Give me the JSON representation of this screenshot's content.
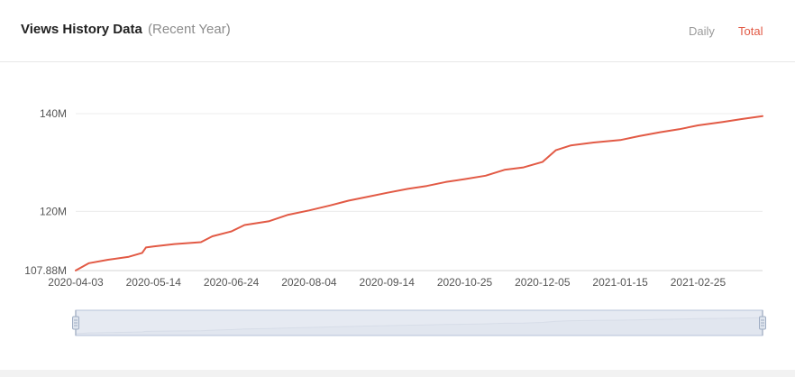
{
  "header": {
    "title": "Views History Data",
    "subtitle": "(Recent Year)",
    "tabs": [
      {
        "label": "Daily",
        "active": false
      },
      {
        "label": "Total",
        "active": true
      }
    ]
  },
  "colors": {
    "line": "#e25a45",
    "active_tab": "#e25a45",
    "inactive_tab": "#9a9a9a",
    "slider_fill": "#dde3ee",
    "slider_border": "#b7c3d8"
  },
  "chart_data": {
    "type": "line",
    "title": "",
    "xlabel": "",
    "ylabel": "",
    "ylim": [
      107.88,
      140
    ],
    "y_ticks": [
      {
        "value": 107.88,
        "label": "107.88M"
      },
      {
        "value": 120,
        "label": "120M"
      },
      {
        "value": 140,
        "label": "140M"
      }
    ],
    "x_ticks": [
      "2020-04-03",
      "2020-05-14",
      "2020-06-24",
      "2020-08-04",
      "2020-09-14",
      "2020-10-25",
      "2020-12-05",
      "2021-01-15",
      "2021-02-25"
    ],
    "x_range": [
      "2020-04-03",
      "2021-03-31"
    ],
    "grid": true,
    "legend": "none",
    "series": [
      {
        "values": [
          {
            "x": "2020-04-03",
            "y": 107.9
          },
          {
            "x": "2020-04-10",
            "y": 109.4
          },
          {
            "x": "2020-04-20",
            "y": 110.1
          },
          {
            "x": "2020-05-01",
            "y": 110.7
          },
          {
            "x": "2020-05-08",
            "y": 111.5
          },
          {
            "x": "2020-05-10",
            "y": 112.6
          },
          {
            "x": "2020-05-14",
            "y": 112.8
          },
          {
            "x": "2020-05-25",
            "y": 113.3
          },
          {
            "x": "2020-06-08",
            "y": 113.7
          },
          {
            "x": "2020-06-14",
            "y": 114.9
          },
          {
            "x": "2020-06-24",
            "y": 115.9
          },
          {
            "x": "2020-07-01",
            "y": 117.2
          },
          {
            "x": "2020-07-14",
            "y": 118.0
          },
          {
            "x": "2020-07-24",
            "y": 119.3
          },
          {
            "x": "2020-08-04",
            "y": 120.2
          },
          {
            "x": "2020-08-15",
            "y": 121.2
          },
          {
            "x": "2020-08-25",
            "y": 122.2
          },
          {
            "x": "2020-09-04",
            "y": 123.0
          },
          {
            "x": "2020-09-14",
            "y": 123.8
          },
          {
            "x": "2020-09-25",
            "y": 124.6
          },
          {
            "x": "2020-10-05",
            "y": 125.2
          },
          {
            "x": "2020-10-15",
            "y": 126.0
          },
          {
            "x": "2020-10-25",
            "y": 126.6
          },
          {
            "x": "2020-11-05",
            "y": 127.3
          },
          {
            "x": "2020-11-15",
            "y": 128.5
          },
          {
            "x": "2020-11-25",
            "y": 129.0
          },
          {
            "x": "2020-12-05",
            "y": 130.1
          },
          {
            "x": "2020-12-12",
            "y": 132.5
          },
          {
            "x": "2020-12-20",
            "y": 133.5
          },
          {
            "x": "2021-01-01",
            "y": 134.1
          },
          {
            "x": "2021-01-15",
            "y": 134.6
          },
          {
            "x": "2021-01-25",
            "y": 135.4
          },
          {
            "x": "2021-02-05",
            "y": 136.2
          },
          {
            "x": "2021-02-15",
            "y": 136.8
          },
          {
            "x": "2021-02-25",
            "y": 137.6
          },
          {
            "x": "2021-03-10",
            "y": 138.3
          },
          {
            "x": "2021-03-20",
            "y": 138.9
          },
          {
            "x": "2021-03-31",
            "y": 139.5
          }
        ]
      }
    ]
  },
  "zoom_slider": {
    "start": 0,
    "end": 100
  }
}
